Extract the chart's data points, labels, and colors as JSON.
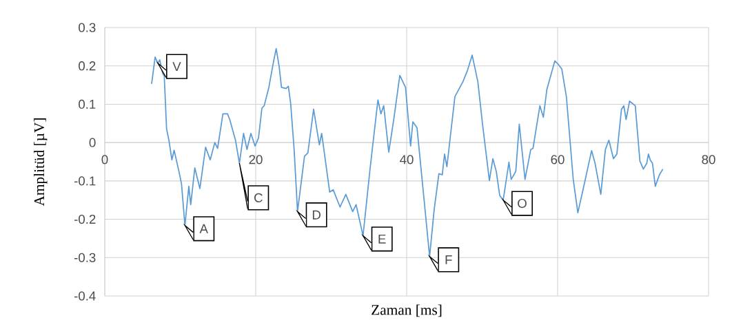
{
  "chart_data": {
    "type": "line",
    "xlabel": "Zaman [ms]",
    "ylabel": "Amplitüd [µV]",
    "color": "#5b9bd5",
    "grid": true,
    "xlim": [
      0,
      80
    ],
    "xticks": [
      0,
      20,
      40,
      60,
      80
    ],
    "ylim": [
      -0.4,
      0.3
    ],
    "yticks": [
      -0.4,
      -0.3,
      -0.2,
      -0.1,
      0,
      0.1,
      0.2,
      0.3
    ],
    "x": [
      6.21,
      6.67,
      7.03,
      7.28,
      7.67,
      7.88,
      8.19,
      8.49,
      8.89,
      9.19,
      9.86,
      10.17,
      10.62,
      11.14,
      11.39,
      11.93,
      12.6,
      13.36,
      13.97,
      14.58,
      14.95,
      15.65,
      16.26,
      16.56,
      17.32,
      17.84,
      18.39,
      18.84,
      19.36,
      19.91,
      20.37,
      20.82,
      21.12,
      21.74,
      22.35,
      22.71,
      23.11,
      23.41,
      24.02,
      24.32,
      24.63,
      25.09,
      25.54,
      26.46,
      26.91,
      27.67,
      28.43,
      28.74,
      29.8,
      30.26,
      31.17,
      31.94,
      32.85,
      33.3,
      34.22,
      35.13,
      36.19,
      36.59,
      36.96,
      37.63,
      38.33,
      39.09,
      39.85,
      40.52,
      40.82,
      41.37,
      43.04,
      43.65,
      44.27,
      44.72,
      45.02,
      45.33,
      46.39,
      47.46,
      48.07,
      48.68,
      49.43,
      50.05,
      50.96,
      51.42,
      51.87,
      52.33,
      52.79,
      53.55,
      53.85,
      54.46,
      54.92,
      55.68,
      56.44,
      56.74,
      57.65,
      58.11,
      58.57,
      59.63,
      60.09,
      60.55,
      61.16,
      62.07,
      62.68,
      63.6,
      64.5,
      64.96,
      65.72,
      66.33,
      66.79,
      67.4,
      67.85,
      68.46,
      68.77,
      69.07,
      69.53,
      70.29,
      70.9,
      71.36,
      71.81,
      72.03,
      72.27,
      72.57,
      72.94,
      73.49,
      73.94
    ],
    "values": [
      0.153,
      0.223,
      0.207,
      0.216,
      0.18,
      0.174,
      0.036,
      0.007,
      -0.045,
      -0.02,
      -0.078,
      -0.108,
      -0.216,
      -0.114,
      -0.162,
      -0.066,
      -0.12,
      -0.012,
      -0.045,
      0,
      -0.015,
      0.075,
      0.075,
      0.06,
      0.006,
      -0.054,
      0.024,
      -0.018,
      0.024,
      -0.009,
      0.012,
      0.09,
      0.096,
      0.144,
      0.21,
      0.245,
      0.198,
      0.144,
      0.141,
      0.147,
      0.102,
      -0.018,
      -0.18,
      -0.036,
      -0.027,
      0.087,
      -0.006,
      0.024,
      -0.129,
      -0.123,
      -0.168,
      -0.135,
      -0.18,
      -0.162,
      -0.243,
      -0.072,
      0.111,
      0.075,
      0.096,
      -0.025,
      0.066,
      0.175,
      0.144,
      -0.009,
      0.054,
      0.039,
      -0.297,
      -0.174,
      -0.081,
      -0.084,
      -0.03,
      -0.063,
      0.12,
      0.159,
      0.189,
      0.228,
      0.159,
      0.048,
      -0.099,
      -0.042,
      -0.075,
      -0.138,
      -0.15,
      -0.051,
      -0.096,
      -0.075,
      0.048,
      -0.096,
      -0.018,
      -0.015,
      0.096,
      0.066,
      0.138,
      0.213,
      0.204,
      0.192,
      0.12,
      -0.096,
      -0.183,
      -0.102,
      -0.021,
      -0.054,
      -0.135,
      -0.018,
      0.006,
      -0.042,
      -0.03,
      0.087,
      0.096,
      0.06,
      0.108,
      0.096,
      -0.048,
      -0.069,
      -0.054,
      -0.03,
      -0.045,
      -0.054,
      -0.114,
      -0.084,
      -0.069
    ],
    "annotations": [
      {
        "text": "V",
        "x": 7.03,
        "y": 0.207
      },
      {
        "text": "A",
        "x": 10.62,
        "y": -0.216
      },
      {
        "text": "C",
        "x": 17.84,
        "y": -0.054
      },
      {
        "text": "D",
        "x": 25.54,
        "y": -0.18
      },
      {
        "text": "E",
        "x": 34.22,
        "y": -0.243
      },
      {
        "text": "F",
        "x": 43.04,
        "y": -0.297
      },
      {
        "text": "O",
        "x": 52.79,
        "y": -0.15
      }
    ]
  }
}
